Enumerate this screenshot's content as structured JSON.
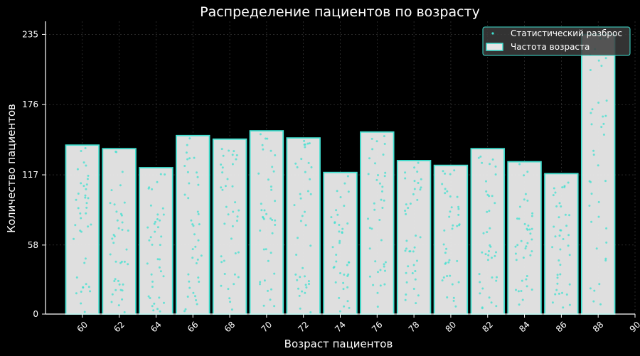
{
  "chart_data": {
    "type": "bar",
    "title": "Распределение пациентов по возрасту",
    "xlabel": "Возраст пациентов",
    "ylabel": "Количество пациентов",
    "x_ticks": [
      "60",
      "62",
      "64",
      "66",
      "68",
      "70",
      "72",
      "74",
      "76",
      "78",
      "80",
      "82",
      "84",
      "86",
      "88",
      "90"
    ],
    "y_ticks": [
      "0",
      "58",
      "117",
      "176",
      "235"
    ],
    "xlim": [
      58,
      90
    ],
    "ylim": [
      0,
      246
    ],
    "grid": true,
    "legend_position": "top-right",
    "series": [
      {
        "name": "Частота возраста",
        "kind": "bar",
        "color": "#e6e6e6",
        "edge_color": "#40e0d0",
        "x": [
          60,
          62,
          64,
          66,
          68,
          70,
          72,
          74,
          76,
          78,
          80,
          82,
          84,
          86,
          88
        ],
        "values": [
          142,
          139,
          123,
          150,
          147,
          154,
          148,
          119,
          153,
          129,
          125,
          139,
          128,
          118,
          235
        ]
      },
      {
        "name": "Статистический разброс",
        "kind": "scatter",
        "color": "#40e0d0"
      }
    ]
  }
}
